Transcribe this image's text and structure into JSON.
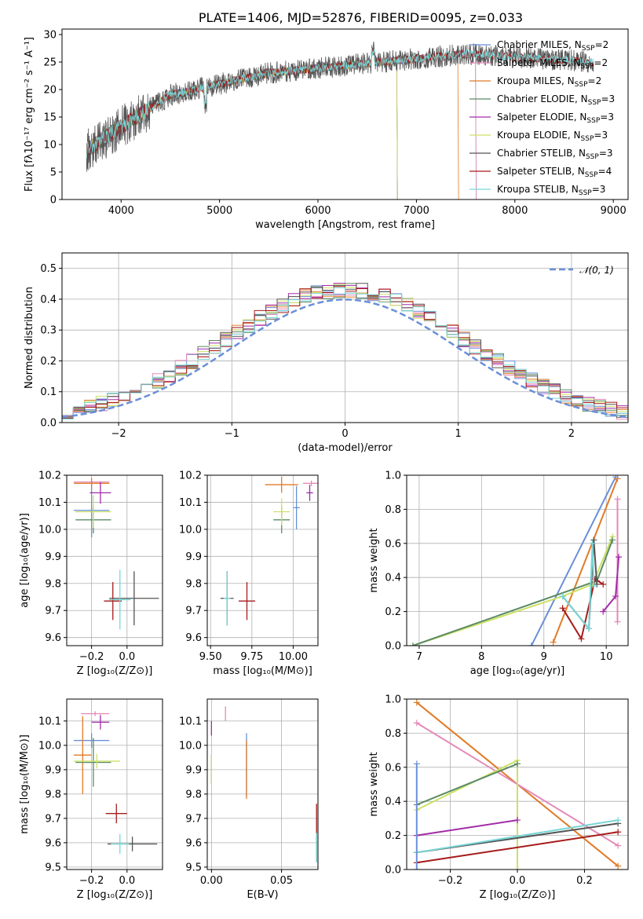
{
  "colors": {
    "c1": "#6a8fd8",
    "c2": "#e48ab8",
    "c3": "#e07b28",
    "c4": "#5a8a64",
    "c5": "#a22ca8",
    "c6": "#cde066",
    "c7": "#555555",
    "c8": "#a61b1b",
    "c9": "#78d6d6"
  },
  "chart_data": [
    {
      "id": "spectrum",
      "type": "line",
      "title": "PLATE=1406, MJD=52876, FIBERID=0095, z=0.033",
      "xlabel": "wavelength [Angstrom, rest frame]",
      "ylabel": "Flux [fλ10⁻¹⁷ erg cm⁻² s⁻¹ A⁻¹]",
      "xlim": [
        3400,
        9150
      ],
      "ylim": [
        0,
        31
      ],
      "xticks": [
        "4000",
        "5000",
        "6000",
        "7000",
        "8000",
        "9000"
      ],
      "yticks": [
        "0",
        "5",
        "10",
        "15",
        "20",
        "25",
        "30"
      ],
      "grid": false,
      "legend_position": "top-right",
      "series": [
        {
          "name": "Chabrier MILES, N",
          "sub": "SSP",
          "suffix": "=2",
          "color": "#6a8fd8",
          "range": [
            3650,
            7600
          ]
        },
        {
          "name": "Salpeter MILES, N",
          "sub": "SSP",
          "suffix": "=2",
          "color": "#e48ab8",
          "range": [
            3650,
            7600
          ]
        },
        {
          "name": "Kroupa MILES, N",
          "sub": "SSP",
          "suffix": "=2",
          "color": "#e07b28",
          "range": [
            3650,
            7420
          ]
        },
        {
          "name": "Chabrier ELODIE, N",
          "sub": "SSP",
          "suffix": "=3",
          "color": "#5a8a64",
          "range": [
            3650,
            6800
          ]
        },
        {
          "name": "Salpeter ELODIE, N",
          "sub": "SSP",
          "suffix": "=3",
          "color": "#a22ca8",
          "range": [
            3650,
            6800
          ]
        },
        {
          "name": "Kroupa ELODIE, N",
          "sub": "SSP",
          "suffix": "=3",
          "color": "#cde066",
          "range": [
            3650,
            6800
          ]
        },
        {
          "name": "Chabrier STELIB, N",
          "sub": "SSP",
          "suffix": "=3",
          "color": "#555555",
          "range": [
            3650,
            8800
          ]
        },
        {
          "name": "Salpeter STELIB, N",
          "sub": "SSP",
          "suffix": "=4",
          "color": "#a61b1b",
          "range": [
            3650,
            8800
          ]
        },
        {
          "name": "Kroupa STELIB, N",
          "sub": "SSP",
          "suffix": "=3",
          "color": "#78d6d6",
          "range": [
            3650,
            8800
          ]
        }
      ]
    },
    {
      "id": "residuals",
      "type": "histogram",
      "xlabel": "(data-model)/error",
      "ylabel": "Normed distribution",
      "xlim": [
        -2.5,
        2.5
      ],
      "ylim": [
        0,
        0.55
      ],
      "xticks": [
        "−2",
        "−1",
        "0",
        "1",
        "2"
      ],
      "yticks": [
        "0.0",
        "0.1",
        "0.2",
        "0.3",
        "0.4",
        "0.5"
      ],
      "grid": true,
      "legend_position": "top-right",
      "legend_label": "𝒩(0, 1)",
      "normal_curve": {
        "mean": 0,
        "sigma": 1,
        "color": "#6a8fd8"
      }
    },
    {
      "id": "age-vs-Z",
      "type": "errorbar",
      "xlabel": "Z [log₁₀(Z/Z⊙)]",
      "ylabel": "age  [log₁₀(age/yr)]",
      "xlim": [
        -0.34,
        0.2
      ],
      "ylim": [
        9.57,
        10.2
      ],
      "xticks": [
        "−0.2",
        "0.0"
      ],
      "yticks": [
        "9.6",
        "9.7",
        "9.8",
        "9.9",
        "10.0",
        "10.1",
        "10.2"
      ],
      "grid": true,
      "points": [
        {
          "color": "#6a8fd8",
          "x": -0.2,
          "xerr": 0.1,
          "y": 10.07,
          "yerr": 0.1
        },
        {
          "color": "#e48ab8",
          "x": -0.2,
          "xerr": 0.1,
          "y": 10.175,
          "yerr": 0.01
        },
        {
          "color": "#e07b28",
          "x": -0.2,
          "xerr": 0.1,
          "y": 10.17,
          "yerr": 0.02
        },
        {
          "color": "#5a8a64",
          "x": -0.19,
          "xerr": 0.1,
          "y": 10.035,
          "yerr": 0.05
        },
        {
          "color": "#a22ca8",
          "x": -0.15,
          "xerr": 0.06,
          "y": 10.135,
          "yerr": 0.04
        },
        {
          "color": "#cde066",
          "x": -0.19,
          "xerr": 0.1,
          "y": 10.065,
          "yerr": 0.06
        },
        {
          "color": "#555555",
          "x": 0.04,
          "xerr": 0.14,
          "y": 9.745,
          "yerr": 0.1
        },
        {
          "color": "#a61b1b",
          "x": -0.08,
          "xerr": 0.05,
          "y": 9.735,
          "yerr": 0.07
        },
        {
          "color": "#78d6d6",
          "x": -0.04,
          "xerr": 0.06,
          "y": 9.74,
          "yerr": 0.11
        }
      ]
    },
    {
      "id": "age-vs-mass",
      "type": "errorbar",
      "xlabel": "mass [log₁₀(M/M⊙)]",
      "ylabel": "",
      "xlim": [
        9.48,
        10.15
      ],
      "ylim": [
        9.57,
        10.2
      ],
      "xticks": [
        "9.50",
        "9.75",
        "10.00"
      ],
      "yticks": [
        "9.6",
        "9.7",
        "9.8",
        "9.9",
        "10.0",
        "10.1",
        "10.2"
      ],
      "grid": true,
      "points": [
        {
          "color": "#6a8fd8",
          "x": 10.02,
          "xerr": 0.02,
          "y": 10.08,
          "yerr": 0.08
        },
        {
          "color": "#e48ab8",
          "x": 10.11,
          "xerr": 0.05,
          "y": 10.17,
          "yerr": 0.01
        },
        {
          "color": "#e07b28",
          "x": 9.93,
          "xerr": 0.1,
          "y": 10.165,
          "yerr": 0.03
        },
        {
          "color": "#5a8a64",
          "x": 9.93,
          "xerr": 0.05,
          "y": 10.035,
          "yerr": 0.05
        },
        {
          "color": "#a22ca8",
          "x": 10.1,
          "xerr": 0.02,
          "y": 10.135,
          "yerr": 0.03
        },
        {
          "color": "#cde066",
          "x": 9.93,
          "xerr": 0.05,
          "y": 10.065,
          "yerr": 0.05
        },
        {
          "color": "#555555",
          "x": 9.6,
          "xerr": 0.04,
          "y": 9.745,
          "yerr": 0.1
        },
        {
          "color": "#a61b1b",
          "x": 9.72,
          "xerr": 0.05,
          "y": 9.735,
          "yerr": 0.07
        },
        {
          "color": "#78d6d6",
          "x": 9.6,
          "xerr": 0.02,
          "y": 9.745,
          "yerr": 0.1
        }
      ]
    },
    {
      "id": "massweight-vs-age",
      "type": "line",
      "xlabel": "age  [log₁₀(age/yr)]",
      "ylabel": "mass weight",
      "xlim": [
        6.8,
        10.35
      ],
      "ylim": [
        0,
        1
      ],
      "xticks": [
        "7",
        "8",
        "9",
        "10"
      ],
      "yticks": [
        "0.0",
        "0.2",
        "0.4",
        "0.6",
        "0.8",
        "1.0"
      ],
      "grid": true,
      "series": [
        {
          "color": "#6a8fd8",
          "x": [
            8.8,
            10.15
          ],
          "y": [
            0.0,
            0.99
          ]
        },
        {
          "color": "#e07b28",
          "x": [
            9.15,
            10.18
          ],
          "y": [
            0.02,
            0.98
          ]
        },
        {
          "color": "#e48ab8",
          "x": [
            10.18,
            10.18
          ],
          "y": [
            0.14,
            0.86
          ]
        },
        {
          "color": "#cde066",
          "x": [
            6.9,
            9.3,
            9.78,
            10.1
          ],
          "y": [
            0.0,
            0.29,
            0.36,
            0.64
          ]
        },
        {
          "color": "#5a8a64",
          "x": [
            6.9,
            9.85,
            10.1
          ],
          "y": [
            0.0,
            0.38,
            0.62
          ]
        },
        {
          "color": "#a22ca8",
          "x": [
            9.95,
            10.15,
            10.2
          ],
          "y": [
            0.2,
            0.29,
            0.52
          ]
        },
        {
          "color": "#a61b1b",
          "x": [
            9.3,
            9.6,
            9.82,
            9.95
          ],
          "y": [
            0.22,
            0.04,
            0.39,
            0.36
          ]
        },
        {
          "color": "#555555",
          "x": [
            9.3,
            9.72,
            9.8,
            9.85
          ],
          "y": [
            0.29,
            0.1,
            0.62,
            0.36
          ]
        },
        {
          "color": "#78d6d6",
          "x": [
            9.3,
            9.72,
            9.78,
            9.8
          ],
          "y": [
            0.29,
            0.1,
            0.6,
            0.35
          ]
        }
      ]
    },
    {
      "id": "mass-vs-Z",
      "type": "errorbar",
      "xlabel": "Z [log₁₀(Z/Z⊙)]",
      "ylabel": "mass [log₁₀(M/M⊙)]",
      "xlim": [
        -0.34,
        0.2
      ],
      "ylim": [
        9.49,
        10.19
      ],
      "xticks": [
        "−0.2",
        "0.0"
      ],
      "yticks": [
        "9.5",
        "9.6",
        "9.7",
        "9.8",
        "9.9",
        "10.0",
        "10.1"
      ],
      "grid": true,
      "points": [
        {
          "color": "#6a8fd8",
          "x": -0.2,
          "xerr": 0.1,
          "y": 10.02,
          "yerr": 0.03
        },
        {
          "color": "#e48ab8",
          "x": -0.18,
          "xerr": 0.08,
          "y": 10.13,
          "yerr": 0.01
        },
        {
          "color": "#e07b28",
          "x": -0.25,
          "xerr": 0.05,
          "y": 9.96,
          "yerr": 0.16
        },
        {
          "color": "#5a8a64",
          "x": -0.19,
          "xerr": 0.1,
          "y": 9.93,
          "yerr": 0.1
        },
        {
          "color": "#a22ca8",
          "x": -0.15,
          "xerr": 0.05,
          "y": 10.095,
          "yerr": 0.03
        },
        {
          "color": "#cde066",
          "x": -0.17,
          "xerr": 0.13,
          "y": 9.935,
          "yerr": 0.03
        },
        {
          "color": "#555555",
          "x": 0.03,
          "xerr": 0.14,
          "y": 9.595,
          "yerr": 0.03
        },
        {
          "color": "#a61b1b",
          "x": -0.06,
          "xerr": 0.06,
          "y": 9.72,
          "yerr": 0.04
        },
        {
          "color": "#78d6d6",
          "x": -0.04,
          "xerr": 0.05,
          "y": 9.595,
          "yerr": 0.04
        }
      ]
    },
    {
      "id": "mass-vs-EBV",
      "type": "errorbar",
      "xlabel": "E(B-V)",
      "ylabel": "",
      "xlim": [
        -0.003,
        0.076
      ],
      "ylim": [
        9.49,
        10.19
      ],
      "xticks": [
        "0.00",
        "0.05"
      ],
      "yticks": [
        "9.5",
        "9.6",
        "9.7",
        "9.8",
        "9.9",
        "10.0",
        "10.1"
      ],
      "grid": true,
      "points": [
        {
          "color": "#6a8fd8",
          "x": 0.025,
          "xerr": 0,
          "y": 9.92,
          "yerr": 0.13
        },
        {
          "color": "#e48ab8",
          "x": 0.01,
          "xerr": 0,
          "y": 10.13,
          "yerr": 0.03
        },
        {
          "color": "#e07b28",
          "x": 0.025,
          "xerr": 0,
          "y": 9.9,
          "yerr": 0.12
        },
        {
          "color": "#5a8a64",
          "x": 0.0,
          "xerr": 0,
          "y": 9.9,
          "yerr": 0.06
        },
        {
          "color": "#a22ca8",
          "x": 0.0,
          "xerr": 0,
          "y": 10.07,
          "yerr": 0.03
        },
        {
          "color": "#cde066",
          "x": 0.0,
          "xerr": 0,
          "y": 9.9,
          "yerr": 0.06
        },
        {
          "color": "#555555",
          "x": 0.075,
          "xerr": 0,
          "y": 9.58,
          "yerr": 0.06
        },
        {
          "color": "#a61b1b",
          "x": 0.075,
          "xerr": 0,
          "y": 9.7,
          "yerr": 0.06
        },
        {
          "color": "#78d6d6",
          "x": 0.075,
          "xerr": 0,
          "y": 9.58,
          "yerr": 0.06
        }
      ]
    },
    {
      "id": "massweight-vs-Z",
      "type": "line",
      "xlabel": "Z [log₁₀(Z/Z⊙)]",
      "ylabel": "mass weight",
      "xlim": [
        -0.33,
        0.33
      ],
      "ylim": [
        0,
        1
      ],
      "xticks": [
        "−0.2",
        "0.0",
        "0.2"
      ],
      "yticks": [
        "0.0",
        "0.2",
        "0.4",
        "0.6",
        "0.8",
        "1.0"
      ],
      "grid": true,
      "series": [
        {
          "color": "#e07b28",
          "x": [
            -0.3,
            0.3
          ],
          "y": [
            0.98,
            0.02
          ]
        },
        {
          "color": "#e48ab8",
          "x": [
            -0.3,
            0.3
          ],
          "y": [
            0.86,
            0.14
          ]
        },
        {
          "color": "#cde066",
          "x": [
            -0.3,
            0.0,
            0.0
          ],
          "y": [
            0.35,
            0.64,
            0.0
          ]
        },
        {
          "color": "#5a8a64",
          "x": [
            -0.3,
            0.0
          ],
          "y": [
            0.38,
            0.62
          ]
        },
        {
          "color": "#a22ca8",
          "x": [
            -0.3,
            0.0
          ],
          "y": [
            0.2,
            0.29
          ]
        },
        {
          "color": "#a61b1b",
          "x": [
            -0.3,
            0.3
          ],
          "y": [
            0.04,
            0.22
          ]
        },
        {
          "color": "#555555",
          "x": [
            -0.3,
            0.3
          ],
          "y": [
            0.1,
            0.27
          ]
        },
        {
          "color": "#78d6d6",
          "x": [
            -0.3,
            0.3
          ],
          "y": [
            0.1,
            0.29
          ]
        },
        {
          "color": "#6a8fd8",
          "x": [
            -0.3,
            -0.3
          ],
          "y": [
            0.0,
            0.62
          ]
        }
      ]
    }
  ]
}
